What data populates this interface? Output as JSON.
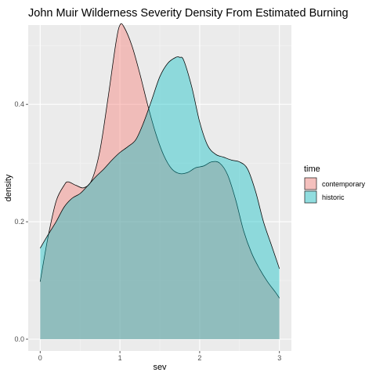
{
  "chart_data": {
    "type": "area",
    "title": "John Muir Wilderness Severity Density From Estimated Burning",
    "xlabel": "sev",
    "ylabel": "density",
    "xlim": [
      -0.15,
      3.15
    ],
    "ylim": [
      -0.02,
      0.535
    ],
    "x_ticks": [
      0,
      1,
      2,
      3
    ],
    "y_ticks": [
      0.0,
      0.2,
      0.4
    ],
    "x_tick_labels": [
      "0",
      "1",
      "2",
      "3"
    ],
    "y_tick_labels": [
      "0.0",
      "0.2",
      "0.4"
    ],
    "grid": true,
    "legend": {
      "title": "time",
      "placement": "right"
    },
    "series": [
      {
        "name": "contemporary",
        "color": "#F8766D",
        "x": [
          0,
          0.1,
          0.2,
          0.3,
          0.35,
          0.45,
          0.55,
          0.65,
          0.75,
          0.85,
          0.95,
          1.0,
          1.05,
          1.15,
          1.25,
          1.35,
          1.45,
          1.55,
          1.65,
          1.75,
          1.85,
          1.95,
          2.05,
          2.15,
          2.25,
          2.35,
          2.45,
          2.55,
          2.65,
          2.75,
          2.85,
          2.95,
          3.0
        ],
        "y": [
          0.098,
          0.175,
          0.235,
          0.262,
          0.268,
          0.262,
          0.258,
          0.272,
          0.322,
          0.41,
          0.505,
          0.535,
          0.532,
          0.5,
          0.452,
          0.398,
          0.35,
          0.313,
          0.29,
          0.282,
          0.284,
          0.292,
          0.295,
          0.302,
          0.3,
          0.28,
          0.238,
          0.185,
          0.147,
          0.12,
          0.098,
          0.08,
          0.07
        ]
      },
      {
        "name": "historic",
        "color": "#00BFC4",
        "x": [
          0,
          0.1,
          0.2,
          0.3,
          0.4,
          0.5,
          0.6,
          0.7,
          0.8,
          0.9,
          1.0,
          1.1,
          1.2,
          1.3,
          1.4,
          1.5,
          1.6,
          1.7,
          1.75,
          1.8,
          1.9,
          2.0,
          2.1,
          2.2,
          2.3,
          2.4,
          2.5,
          2.6,
          2.7,
          2.8,
          2.9,
          3.0
        ],
        "y": [
          0.155,
          0.178,
          0.2,
          0.225,
          0.24,
          0.248,
          0.262,
          0.277,
          0.29,
          0.305,
          0.318,
          0.328,
          0.34,
          0.37,
          0.408,
          0.447,
          0.47,
          0.48,
          0.48,
          0.475,
          0.43,
          0.37,
          0.33,
          0.315,
          0.31,
          0.305,
          0.302,
          0.29,
          0.252,
          0.2,
          0.16,
          0.12
        ]
      }
    ]
  }
}
